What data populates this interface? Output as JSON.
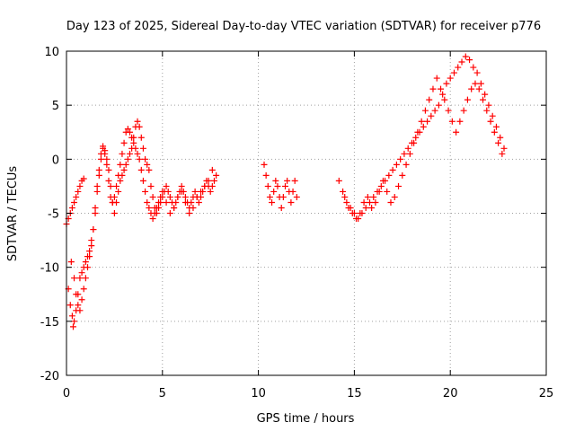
{
  "chart_data": {
    "type": "scatter",
    "title": "Day 123 of 2025, Sidereal Day-to-day VTEC variation (SDTVAR) for receiver p776",
    "xlabel": "GPS time / hours",
    "ylabel": "SDTVAR / TECUs",
    "xlim": [
      0,
      25
    ],
    "ylim": [
      -20,
      10
    ],
    "x_ticks": [
      "0",
      "5",
      "10",
      "15",
      "20",
      "25"
    ],
    "y_ticks": [
      "-20",
      "-15",
      "-10",
      "-5",
      "0",
      "5",
      "10"
    ],
    "grid": true,
    "marker": "plus",
    "color": "#ff0000",
    "series": [
      {
        "x": [
          0.0,
          0.1,
          0.2,
          0.3,
          0.4,
          0.5,
          0.6,
          0.7,
          0.8,
          0.9,
          0.25,
          0.4,
          0.5,
          0.6,
          0.7,
          0.8,
          0.9,
          1.0,
          1.1,
          1.2,
          1.3,
          1.4,
          1.5,
          1.6,
          1.7,
          1.8,
          1.9,
          2.0,
          2.1,
          2.2,
          2.3,
          2.4,
          2.5,
          2.6,
          2.7,
          2.8,
          2.9,
          3.0,
          3.1,
          3.2,
          3.3,
          3.4,
          3.5,
          3.6,
          3.7,
          3.8,
          3.9,
          4.0,
          4.1,
          4.2,
          4.3,
          4.4,
          4.5,
          4.6,
          4.7,
          4.8,
          4.9,
          5.0,
          5.1,
          5.2,
          5.3,
          5.4,
          5.5,
          5.6,
          5.7,
          5.8,
          5.9,
          6.0,
          6.1,
          6.2,
          6.3,
          6.4,
          6.5,
          6.6,
          6.7,
          6.8,
          6.9,
          7.0,
          7.1,
          7.2,
          7.3,
          7.4,
          7.5,
          7.6,
          7.7,
          7.8
        ],
        "y": [
          -6.0,
          -5.5,
          -5.0,
          -4.5,
          -4.0,
          -3.5,
          -3.0,
          -2.5,
          -2.0,
          -1.8,
          -9.5,
          -11.0,
          -12.5,
          -13.5,
          -14.0,
          -13.0,
          -12.0,
          -11.0,
          -10.0,
          -9.0,
          -8.0,
          -6.5,
          -4.5,
          -2.5,
          -1.0,
          0.5,
          1.2,
          0.8,
          0.0,
          -1.0,
          -2.5,
          -4.0,
          -5.0,
          -4.0,
          -3.0,
          -2.0,
          -1.5,
          -1.0,
          -0.5,
          0.0,
          0.5,
          1.0,
          2.0,
          3.0,
          3.5,
          3.0,
          2.0,
          1.0,
          0.0,
          -0.5,
          -1.0,
          -2.5,
          -3.5,
          -4.5,
          -5.0,
          -4.5,
          -4.0,
          -3.5,
          -3.0,
          -2.5,
          -3.0,
          -3.5,
          -4.0,
          -4.5,
          -4.0,
          -3.5,
          -3.0,
          -2.5,
          -3.0,
          -3.5,
          -4.0,
          -4.5,
          -4.0,
          -3.5,
          -3.0,
          -3.5,
          -4.0,
          -3.5,
          -3.0,
          -2.5,
          -2.0,
          -2.5,
          -3.0,
          -2.5,
          -2.0,
          -1.5
        ]
      },
      {
        "x": [
          0.1,
          0.2,
          0.3,
          0.35,
          0.4,
          0.5,
          0.6,
          0.7,
          0.8,
          0.9,
          1.0,
          1.1,
          1.2,
          1.3,
          1.4,
          1.5,
          1.6,
          1.7,
          1.8,
          1.9,
          2.0,
          2.1,
          2.2,
          2.3,
          2.4,
          2.5,
          2.6,
          2.7,
          2.8,
          2.9,
          3.0,
          3.1,
          3.2,
          3.3,
          3.4,
          3.5,
          3.6,
          3.7,
          3.8,
          3.9,
          4.0,
          4.1,
          4.2,
          4.3,
          4.4,
          4.5,
          4.6,
          4.7,
          4.8,
          4.9,
          5.0,
          5.2,
          5.4,
          5.6,
          5.8,
          6.0,
          6.2,
          6.4,
          6.6,
          6.8,
          7.0,
          7.2,
          7.4,
          7.6
        ],
        "y": [
          -12.0,
          -13.5,
          -14.5,
          -15.5,
          -15.0,
          -14.0,
          -12.5,
          -11.0,
          -10.5,
          -10.0,
          -9.5,
          -9.0,
          -8.5,
          -7.5,
          -6.5,
          -5.0,
          -3.0,
          -1.5,
          0.0,
          1.0,
          0.5,
          -0.5,
          -2.0,
          -3.5,
          -4.0,
          -3.5,
          -2.5,
          -1.5,
          -0.5,
          0.5,
          1.5,
          2.5,
          2.8,
          2.5,
          2.0,
          1.5,
          1.0,
          0.5,
          0.0,
          -1.0,
          -2.0,
          -3.0,
          -4.0,
          -4.5,
          -5.0,
          -5.5,
          -5.0,
          -4.5,
          -4.0,
          -3.5,
          -3.0,
          -4.0,
          -5.0,
          -4.5,
          -3.5,
          -3.0,
          -4.0,
          -5.0,
          -4.5,
          -3.5,
          -3.0,
          -2.5,
          -2.0,
          -1.0
        ]
      },
      {
        "x": [
          10.3,
          10.4,
          10.5,
          10.6,
          10.7,
          10.8,
          10.9,
          11.0,
          11.1,
          11.2,
          11.3,
          11.4,
          11.5,
          11.6,
          11.7,
          11.8,
          11.9,
          12.0
        ],
        "y": [
          -0.5,
          -1.5,
          -2.5,
          -3.5,
          -4.0,
          -3.0,
          -2.0,
          -2.5,
          -3.5,
          -4.5,
          -3.5,
          -2.5,
          -2.0,
          -3.0,
          -4.0,
          -3.0,
          -2.0,
          -3.5
        ]
      },
      {
        "x": [
          14.2,
          14.4,
          14.6,
          14.8,
          15.0,
          15.2,
          15.4,
          15.6,
          15.8,
          16.0,
          16.2,
          16.4,
          16.6,
          16.8,
          17.0,
          17.2,
          17.4,
          17.6,
          17.8,
          18.0,
          18.2,
          18.4,
          18.6,
          18.8,
          19.0,
          19.2,
          19.4,
          19.6,
          19.8,
          20.0,
          20.2,
          20.4,
          20.6,
          20.8,
          21.0,
          21.2,
          21.4,
          21.6,
          21.8,
          22.0,
          22.2,
          22.4,
          22.6,
          22.8
        ],
        "y": [
          -2.0,
          -3.0,
          -4.0,
          -4.5,
          -5.0,
          -5.5,
          -5.0,
          -4.5,
          -4.0,
          -3.5,
          -3.0,
          -2.5,
          -2.0,
          -1.5,
          -1.0,
          -0.5,
          0.0,
          0.5,
          1.0,
          1.5,
          2.0,
          2.5,
          3.0,
          3.5,
          4.0,
          4.5,
          5.0,
          6.0,
          7.0,
          7.5,
          8.0,
          8.5,
          9.0,
          9.5,
          9.2,
          8.5,
          8.0,
          7.0,
          6.0,
          5.0,
          4.0,
          3.0,
          2.0,
          1.0
        ]
      },
      {
        "x": [
          14.5,
          14.7,
          14.9,
          15.1,
          15.3,
          15.5,
          15.7,
          15.9,
          16.1,
          16.3,
          16.5,
          16.7,
          16.9,
          17.1,
          17.3,
          17.5,
          17.7,
          17.9,
          18.1,
          18.3,
          18.5,
          18.7,
          18.9,
          19.1,
          19.3,
          19.5,
          19.7,
          19.9,
          20.1,
          20.3,
          20.5,
          20.7,
          20.9,
          21.1,
          21.3,
          21.5,
          21.7,
          21.9,
          22.1,
          22.3,
          22.5,
          22.7
        ],
        "y": [
          -3.5,
          -4.5,
          -5.0,
          -5.5,
          -5.0,
          -4.0,
          -3.5,
          -4.5,
          -4.0,
          -3.0,
          -2.0,
          -3.0,
          -4.0,
          -3.5,
          -2.5,
          -1.5,
          -0.5,
          0.5,
          1.5,
          2.5,
          3.5,
          4.5,
          5.5,
          6.5,
          7.5,
          6.5,
          5.5,
          4.5,
          3.5,
          2.5,
          3.5,
          4.5,
          5.5,
          6.5,
          7.0,
          6.5,
          5.5,
          4.5,
          3.5,
          2.5,
          1.5,
          0.5
        ]
      }
    ]
  }
}
